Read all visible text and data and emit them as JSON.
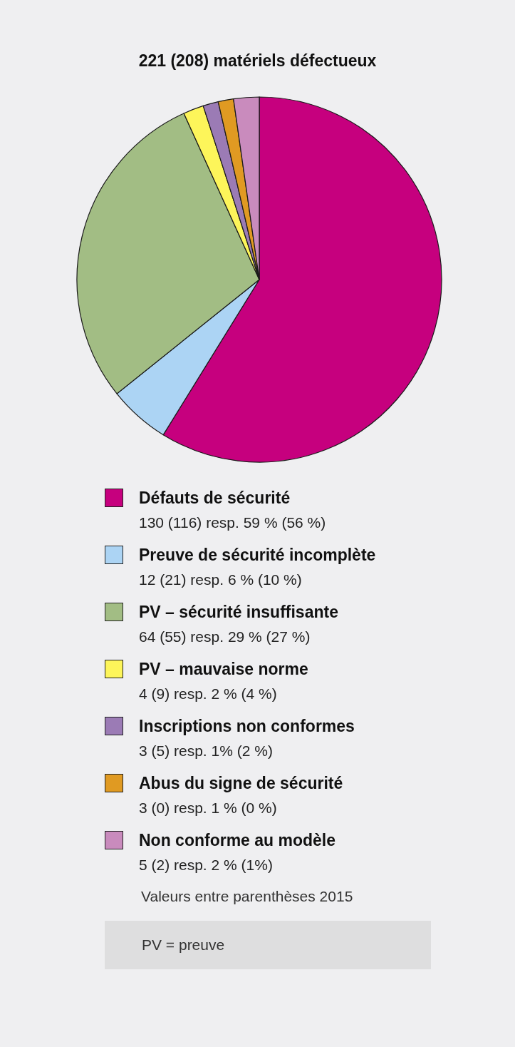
{
  "chart_data": {
    "type": "pie",
    "title": "221 (208) matériels défectueux",
    "categories": [
      "Défauts de sécurité",
      "Preuve de sécurité incomplète",
      "PV – sécurité insuffisante",
      "PV – mauvaise norme",
      "Inscriptions non conformes",
      "Abus du signe de sécurité",
      "Non conforme au modèle"
    ],
    "values": [
      130,
      12,
      64,
      4,
      3,
      3,
      5
    ],
    "colors": [
      "#c6007e",
      "#acd4f4",
      "#a2bd84",
      "#fdf55a",
      "#9b7bb5",
      "#e09a22",
      "#c98bbd"
    ],
    "value_labels": [
      "130 (116) resp. 59 % (56 %)",
      "12 (21) resp. 6 % (10 %)",
      "64 (55) resp. 29 % (27 %)",
      "4 (9) resp. 2 % (4 %)",
      "3 (5) resp. 1% (2 %)",
      "3 (0) resp. 1 % (0 %)",
      "5 (2) resp. 2 % (1%)"
    ],
    "legend": "bottom",
    "annotations": [
      "Valeurs entre parenthèses 2015",
      "PV = preuve"
    ]
  }
}
